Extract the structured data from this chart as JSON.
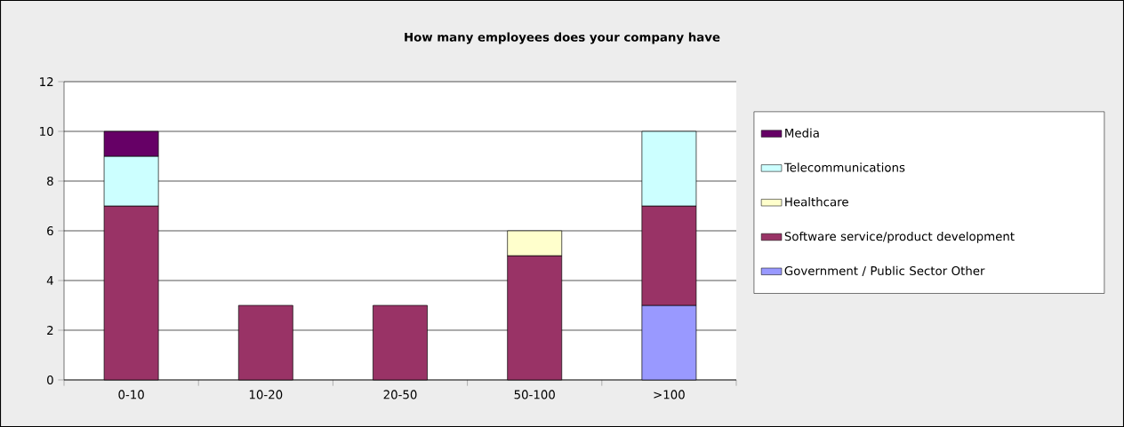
{
  "chart_data": {
    "type": "bar",
    "title": "How many employees does your company have",
    "categories": [
      "0-10",
      "10-20",
      "20-50",
      "50-100",
      ">100"
    ],
    "stacked": true,
    "ylim": [
      0,
      12
    ],
    "yticks": [
      0,
      2,
      4,
      6,
      8,
      10,
      12
    ],
    "grid": "y",
    "legend": "right",
    "series": [
      {
        "name": "Government / Public Sector  Other",
        "color": "#9999ff",
        "values": [
          null,
          null,
          null,
          null,
          3
        ]
      },
      {
        "name": "Software service/product development",
        "color": "#993366",
        "values": [
          7,
          3,
          3,
          5,
          4
        ]
      },
      {
        "name": "Healthcare",
        "color": "#ffffcc",
        "values": [
          null,
          null,
          null,
          1,
          null
        ]
      },
      {
        "name": "Telecommunications",
        "color": "#ccffff",
        "values": [
          2,
          null,
          null,
          null,
          3
        ]
      },
      {
        "name": "Media",
        "color": "#660066",
        "values": [
          1,
          null,
          null,
          null,
          null
        ]
      }
    ]
  }
}
